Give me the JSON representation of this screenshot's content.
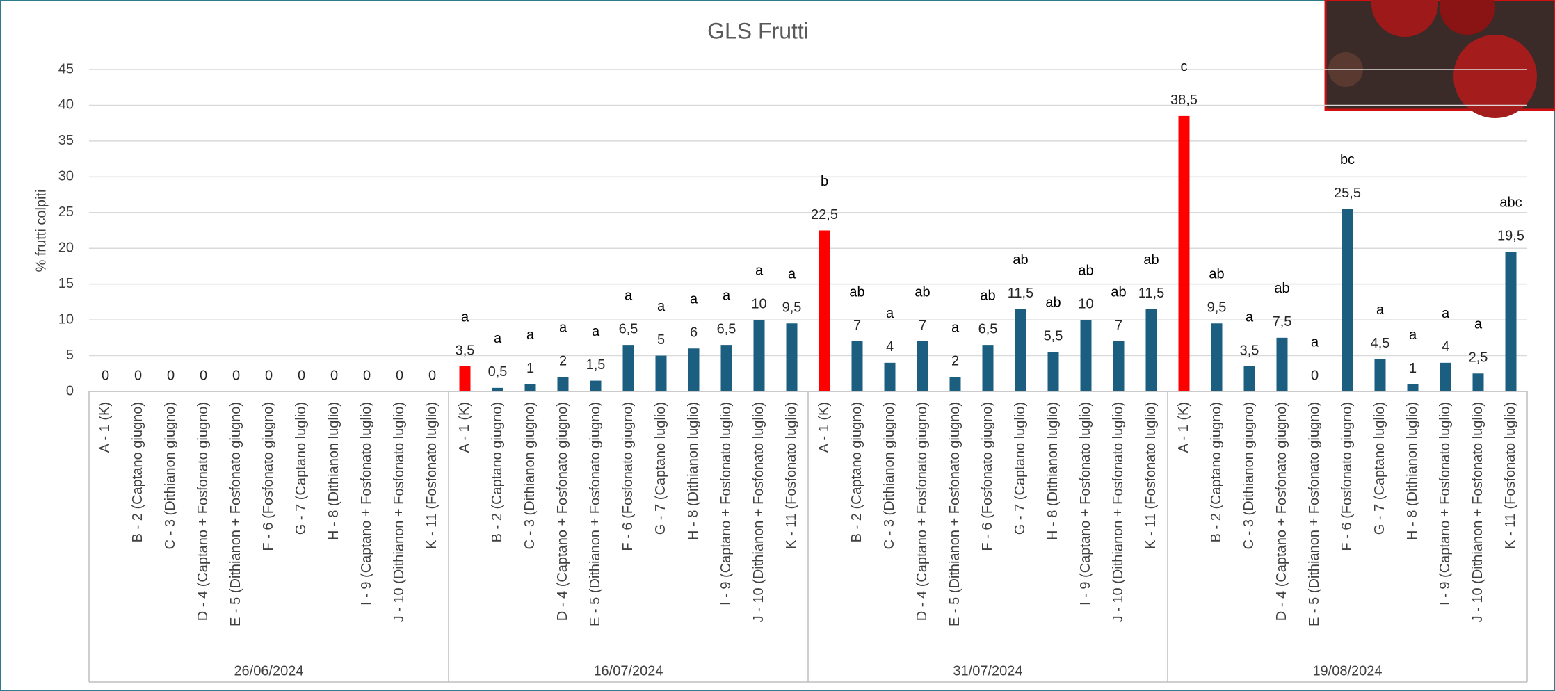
{
  "chart_data": {
    "type": "bar",
    "title": "GLS Frutti",
    "y_label": "% frutti colpiti",
    "ylim": [
      0,
      45
    ],
    "yticks": [
      0,
      5,
      10,
      15,
      20,
      25,
      30,
      35,
      40,
      45
    ],
    "grid": true,
    "groups": [
      {
        "name": "26/06/2024",
        "categories": [
          "A - 1 (K)",
          "B - 2 (Captano giugno)",
          "C - 3 (Dithianon giugno)",
          "D - 4 (Captano + Fosfonato giugno)",
          "E - 5 (Dithianon + Fosfonato giugno)",
          "F - 6 (Fosfonato giugno)",
          "G - 7 (Captano luglio)",
          "H - 8 (Dithianon luglio)",
          "I - 9 (Captano + Fosfonato luglio)",
          "J - 10 (Dithianon + Fosfonato luglio)",
          "K - 11 (Fosfonato luglio)"
        ],
        "values": [
          0,
          0,
          0,
          0,
          0,
          0,
          0,
          0,
          0,
          0,
          0
        ],
        "value_labels": [
          "0",
          "0",
          "0",
          "0",
          "0",
          "0",
          "0",
          "0",
          "0",
          "0",
          "0"
        ],
        "colors": [
          "#ff0000",
          "#1b5e80",
          "#1b5e80",
          "#1b5e80",
          "#1b5e80",
          "#1b5e80",
          "#1b5e80",
          "#1b5e80",
          "#1b5e80",
          "#1b5e80",
          "#1b5e80"
        ]
      },
      {
        "name": "16/07/2024",
        "categories": [
          "A - 1 (K)",
          "B - 2 (Captano giugno)",
          "C - 3 (Dithianon giugno)",
          "D - 4 (Captano + Fosfonato giugno)",
          "E - 5 (Dithianon + Fosfonato giugno)",
          "F - 6 (Fosfonato giugno)",
          "G - 7 (Captano luglio)",
          "H - 8 (Dithianon luglio)",
          "I - 9 (Captano + Fosfonato luglio)",
          "J - 10 (Dithianon + Fosfonato luglio)",
          "K - 11 (Fosfonato luglio)"
        ],
        "values": [
          3.5,
          0.5,
          1,
          2,
          1.5,
          6.5,
          5,
          6,
          6.5,
          10,
          9.5
        ],
        "value_labels": [
          "3,5",
          "0,5",
          "1",
          "2",
          "1,5",
          "6,5",
          "5",
          "6",
          "6,5",
          "10",
          "9,5"
        ],
        "annotations": [
          "a",
          "a",
          "a",
          "a",
          "a",
          "a",
          "a",
          "a",
          "a",
          "a",
          "a"
        ],
        "colors": [
          "#ff0000",
          "#1b5e80",
          "#1b5e80",
          "#1b5e80",
          "#1b5e80",
          "#1b5e80",
          "#1b5e80",
          "#1b5e80",
          "#1b5e80",
          "#1b5e80",
          "#1b5e80"
        ]
      },
      {
        "name": "31/07/2024",
        "categories": [
          "A - 1 (K)",
          "B - 2 (Captano giugno)",
          "C - 3 (Dithianon giugno)",
          "D - 4 (Captano + Fosfonato giugno)",
          "E - 5 (Dithianon + Fosfonato giugno)",
          "F - 6 (Fosfonato giugno)",
          "G - 7 (Captano luglio)",
          "H - 8 (Dithianon luglio)",
          "I - 9 (Captano + Fosfonato luglio)",
          "J - 10 (Dithianon + Fosfonato luglio)",
          "K - 11 (Fosfonato luglio)"
        ],
        "values": [
          22.5,
          7,
          4,
          7,
          2,
          6.5,
          11.5,
          5.5,
          10,
          7,
          11.5
        ],
        "value_labels": [
          "22,5",
          "7",
          "4",
          "7",
          "2",
          "6,5",
          "11,5",
          "5,5",
          "10",
          "7",
          "11,5"
        ],
        "annotations": [
          "b",
          "ab",
          "a",
          "ab",
          "a",
          "ab",
          "ab",
          "ab",
          "ab",
          "ab",
          "ab"
        ],
        "colors": [
          "#ff0000",
          "#1b5e80",
          "#1b5e80",
          "#1b5e80",
          "#1b5e80",
          "#1b5e80",
          "#1b5e80",
          "#1b5e80",
          "#1b5e80",
          "#1b5e80",
          "#1b5e80"
        ]
      },
      {
        "name": "19/08/2024",
        "categories": [
          "A - 1 (K)",
          "B - 2 (Captano giugno)",
          "C - 3 (Dithianon giugno)",
          "D - 4 (Captano + Fosfonato giugno)",
          "E - 5 (Dithianon + Fosfonato giugno)",
          "F - 6 (Fosfonato giugno)",
          "G - 7 (Captano luglio)",
          "H - 8 (Dithianon luglio)",
          "I - 9 (Captano + Fosfonato luglio)",
          "J - 10 (Dithianon + Fosfonato luglio)",
          "K - 11 (Fosfonato luglio)"
        ],
        "values": [
          38.5,
          9.5,
          3.5,
          7.5,
          0,
          25.5,
          4.5,
          1,
          4,
          2.5,
          19.5
        ],
        "value_labels": [
          "38,5",
          "9,5",
          "3,5",
          "7,5",
          "0",
          "25,5",
          "4,5",
          "1",
          "4",
          "2,5",
          "19,5"
        ],
        "annotations": [
          "c",
          "ab",
          "a",
          "ab",
          "a",
          "bc",
          "a",
          "a",
          "a",
          "a",
          "abc"
        ],
        "colors": [
          "#ff0000",
          "#1b5e80",
          "#1b5e80",
          "#1b5e80",
          "#1b5e80",
          "#1b5e80",
          "#1b5e80",
          "#1b5e80",
          "#1b5e80",
          "#1b5e80",
          "#1b5e80"
        ]
      }
    ]
  }
}
